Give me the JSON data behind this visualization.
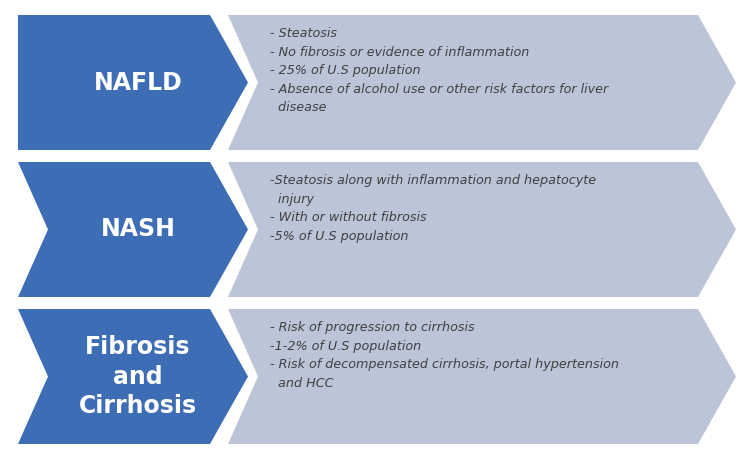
{
  "rows": [
    {
      "label": "NAFLD",
      "arrow_color": "#3D6DB5",
      "box_color": "#BCC4D8",
      "text": "- Steatosis\n- No fibrosis or evidence of inflammation\n- 25% of U.S population\n- Absence of alcohol use or other risk factors for liver\n  disease"
    },
    {
      "label": "NASH",
      "arrow_color": "#3D6DB5",
      "box_color": "#BCC4D8",
      "text": "-Steatosis along with inflammation and hepatocyte\n  injury\n- With or without fibrosis\n-5% of U.S population"
    },
    {
      "label": "Fibrosis\nand\nCirrhosis",
      "arrow_color": "#3D6DB5",
      "box_color": "#BCC4D8",
      "text": "- Risk of progression to cirrhosis\n-1-2% of U.S population\n- Risk of decompensated cirrhosis, portal hypertension\n  and HCC"
    }
  ],
  "bg_color": "#FFFFFF",
  "label_color": "#FFFFFF",
  "text_color": "#404040",
  "label_fontsize": 17,
  "text_fontsize": 9.2,
  "fig_width": 7.54,
  "fig_height": 4.59,
  "dpi": 100
}
